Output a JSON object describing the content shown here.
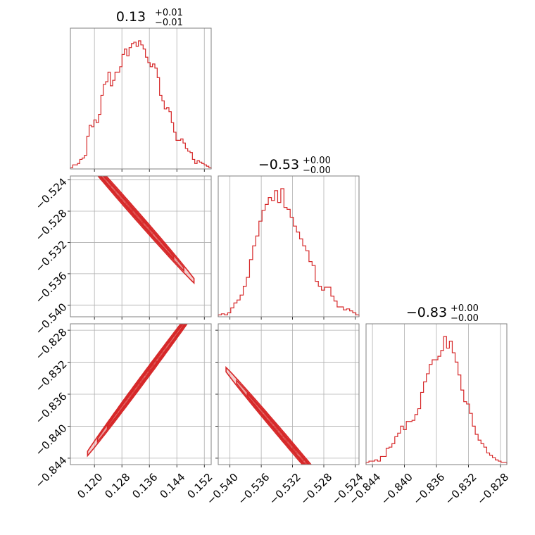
{
  "chart_data": {
    "type": "corner",
    "color": "#d62728",
    "grid": true,
    "parameters": [
      {
        "title": "0.13",
        "plus": "+0.01",
        "minus": "−0.01",
        "range": [
          0.113,
          0.154
        ],
        "ticks": [
          0.12,
          0.128,
          0.136,
          0.144,
          0.152
        ],
        "tick_labels": [
          "0.120",
          "0.128",
          "0.136",
          "0.144",
          "0.152"
        ]
      },
      {
        "title": "−0.53",
        "plus": "+0.00",
        "minus": "−0.00",
        "range": [
          -0.5415,
          -0.5235
        ],
        "ticks": [
          -0.54,
          -0.536,
          -0.532,
          -0.528,
          -0.524
        ],
        "tick_labels": [
          "−0.540",
          "−0.536",
          "−0.532",
          "−0.528",
          "−0.524"
        ]
      },
      {
        "title": "−0.83",
        "plus": "+0.00",
        "minus": "−0.00",
        "range": [
          -0.8448,
          -0.8272
        ],
        "ticks": [
          -0.844,
          -0.84,
          -0.836,
          -0.832,
          -0.828
        ],
        "tick_labels": [
          "−0.844",
          "−0.840",
          "−0.836",
          "−0.832",
          "−0.828"
        ]
      }
    ],
    "histograms": [
      [
        1,
        3,
        3,
        4,
        7,
        8,
        10,
        24,
        32,
        31,
        36,
        34,
        40,
        54,
        62,
        64,
        71,
        61,
        65,
        71,
        71,
        75,
        84,
        88,
        83,
        89,
        92,
        93,
        90,
        94,
        91,
        88,
        82,
        78,
        75,
        77,
        74,
        67,
        54,
        50,
        44,
        45,
        42,
        34,
        27,
        21,
        21,
        22,
        19,
        15,
        13,
        12,
        7,
        4,
        6,
        5,
        4,
        3,
        2,
        1
      ],
      [
        2,
        3,
        2,
        4,
        9,
        14,
        17,
        22,
        31,
        40,
        58,
        72,
        82,
        97,
        108,
        114,
        121,
        118,
        128,
        116,
        130,
        111,
        109,
        101,
        92,
        86,
        79,
        72,
        67,
        56,
        52,
        36,
        31,
        27,
        30,
        30,
        21,
        16,
        10,
        10,
        7,
        8,
        6,
        4,
        2
      ],
      [
        2,
        3,
        3,
        4,
        3,
        7,
        7,
        14,
        15,
        18,
        24,
        27,
        33,
        30,
        37,
        37,
        38,
        43,
        48,
        62,
        71,
        78,
        86,
        90,
        90,
        93,
        98,
        110,
        100,
        106,
        96,
        88,
        77,
        64,
        54,
        52,
        44,
        33,
        26,
        21,
        18,
        15,
        10,
        8,
        6,
        4,
        3,
        2,
        2
      ]
    ],
    "pairs": [
      {
        "x_param": 0,
        "y_param": 1,
        "trend": {
          "slope": -0.5,
          "intercept": -0.4624
        },
        "x_range": [
          0.114,
          0.149
        ]
      },
      {
        "x_param": 0,
        "y_param": 2,
        "trend": {
          "slope": 0.577,
          "intercept": -0.9115
        },
        "x_range": [
          0.118,
          0.152
        ]
      },
      {
        "x_param": 1,
        "y_param": 2,
        "trend": {
          "slope": -1.15,
          "intercept": -1.4545
        },
        "x_range": [
          -0.5405,
          -0.5245
        ]
      }
    ]
  }
}
